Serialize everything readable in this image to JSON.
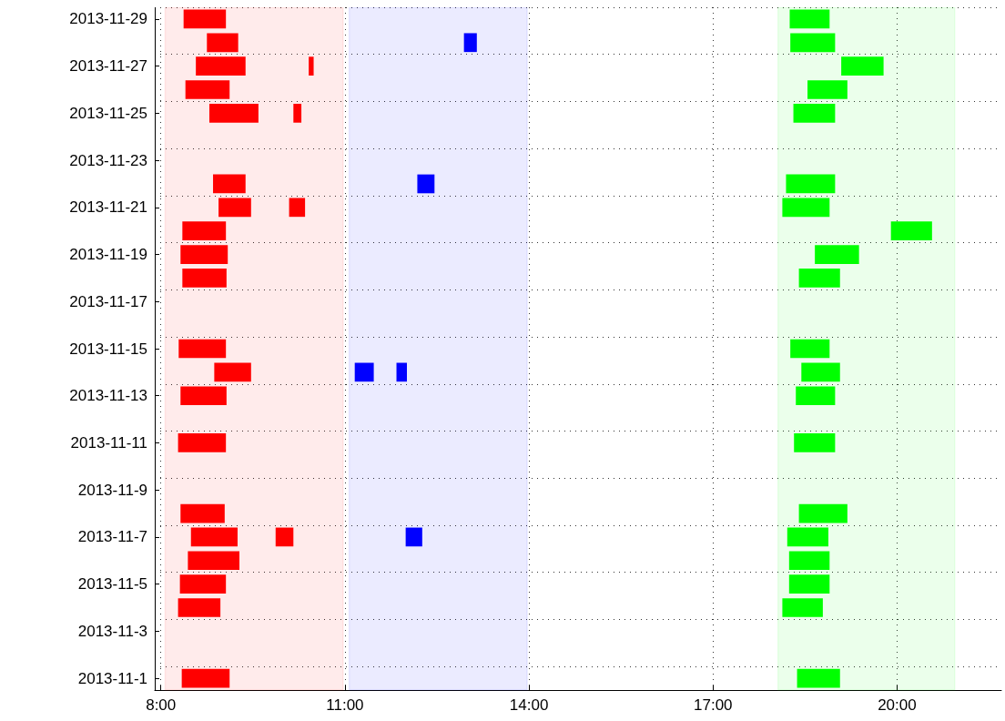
{
  "chart_data": {
    "type": "bar",
    "orientation": "horizontal",
    "categories": [
      "2013-11-29",
      null,
      "2013-11-27",
      null,
      "2013-11-25",
      null,
      "2013-11-23",
      null,
      "2013-11-21",
      null,
      "2013-11-19",
      null,
      "2013-11-17",
      null,
      "2013-11-15",
      null,
      "2013-11-13",
      null,
      "2013-11-11",
      null,
      "2013-11-9",
      null,
      "2013-11-7",
      null,
      "2013-11-5",
      null,
      "2013-11-3",
      null,
      "2013-11-1"
    ],
    "series": [
      {
        "color": "#ff0000",
        "base": [
          8.37,
          8.75,
          8.57,
          8.4,
          8.79,
          null,
          null,
          8.85,
          8.94,
          8.35,
          8.32,
          8.35,
          null,
          null,
          8.29,
          8.87,
          8.32,
          null,
          8.28,
          null,
          null,
          8.32,
          8.49,
          8.44,
          8.31,
          8.28,
          null,
          null,
          8.34
        ],
        "values": [
          0.69,
          0.51,
          0.81,
          0.72,
          0.8,
          null,
          null,
          0.53,
          0.53,
          0.71,
          0.77,
          0.72,
          null,
          null,
          0.77,
          0.6,
          0.75,
          null,
          0.78,
          null,
          null,
          0.72,
          0.76,
          0.84,
          0.75,
          0.69,
          null,
          null,
          0.78
        ]
      },
      {
        "color": "#ff0000",
        "base": [
          null,
          null,
          10.41,
          null,
          10.16,
          null,
          null,
          null,
          10.09,
          null,
          null,
          null,
          null,
          null,
          null,
          null,
          null,
          null,
          null,
          null,
          null,
          null,
          9.87,
          null,
          null,
          null,
          null,
          null,
          null
        ],
        "values": [
          null,
          null,
          0.08,
          null,
          0.13,
          null,
          null,
          null,
          0.26,
          null,
          null,
          null,
          null,
          null,
          null,
          null,
          null,
          null,
          null,
          null,
          null,
          null,
          0.29,
          null,
          null,
          null,
          null,
          null,
          null
        ]
      },
      {
        "color": "#0000ff",
        "base": [
          null,
          12.94,
          null,
          null,
          null,
          null,
          null,
          12.18,
          null,
          null,
          null,
          null,
          null,
          null,
          null,
          11.16,
          null,
          null,
          null,
          null,
          null,
          null,
          11.99,
          null,
          null,
          null,
          null,
          null,
          null
        ],
        "values": [
          null,
          0.21,
          null,
          null,
          null,
          null,
          null,
          0.28,
          null,
          null,
          null,
          null,
          null,
          null,
          null,
          0.31,
          null,
          null,
          null,
          null,
          null,
          null,
          0.27,
          null,
          null,
          null,
          null,
          null,
          null
        ]
      },
      {
        "color": "#0000ff",
        "base": [
          null,
          null,
          null,
          null,
          null,
          null,
          null,
          null,
          null,
          null,
          null,
          null,
          null,
          null,
          null,
          11.84,
          null,
          null,
          null,
          null,
          null,
          null,
          null,
          null,
          null,
          null,
          null,
          null,
          null
        ],
        "values": [
          null,
          null,
          null,
          null,
          null,
          null,
          null,
          null,
          null,
          null,
          null,
          null,
          null,
          null,
          null,
          0.17,
          null,
          null,
          null,
          null,
          null,
          null,
          null,
          null,
          null,
          null,
          null,
          null,
          null
        ]
      },
      {
        "color": "#00ff00",
        "base": [
          18.25,
          18.26,
          19.09,
          18.54,
          18.31,
          null,
          null,
          18.19,
          18.13,
          19.9,
          18.66,
          18.4,
          null,
          null,
          18.26,
          18.44,
          18.35,
          null,
          18.32,
          null,
          null,
          18.4,
          18.21,
          18.24,
          18.24,
          18.13,
          null,
          null,
          18.37
        ],
        "values": [
          0.65,
          0.73,
          0.69,
          0.65,
          0.68,
          null,
          null,
          0.8,
          0.77,
          0.67,
          0.72,
          0.67,
          null,
          null,
          0.64,
          0.63,
          0.64,
          null,
          0.67,
          null,
          null,
          0.79,
          0.67,
          0.66,
          0.66,
          0.66,
          null,
          null,
          0.7
        ]
      }
    ],
    "xlim": [
      7.9,
      21.7
    ],
    "xticks": [
      {
        "value": 8,
        "label": "8:00"
      },
      {
        "value": 11,
        "label": "11:00"
      },
      {
        "value": 14,
        "label": "14:00"
      },
      {
        "value": 17,
        "label": "17:00"
      },
      {
        "value": 20,
        "label": "20:00"
      }
    ],
    "bands": [
      {
        "axis": "x",
        "from": 8.07,
        "to": 10.97,
        "color": "#ff0000"
      },
      {
        "axis": "x",
        "from": 11.07,
        "to": 13.97,
        "color": "#0000ff"
      },
      {
        "axis": "x",
        "from": 18.06,
        "to": 20.94,
        "color": "#00ff00"
      }
    ],
    "grid": true
  }
}
